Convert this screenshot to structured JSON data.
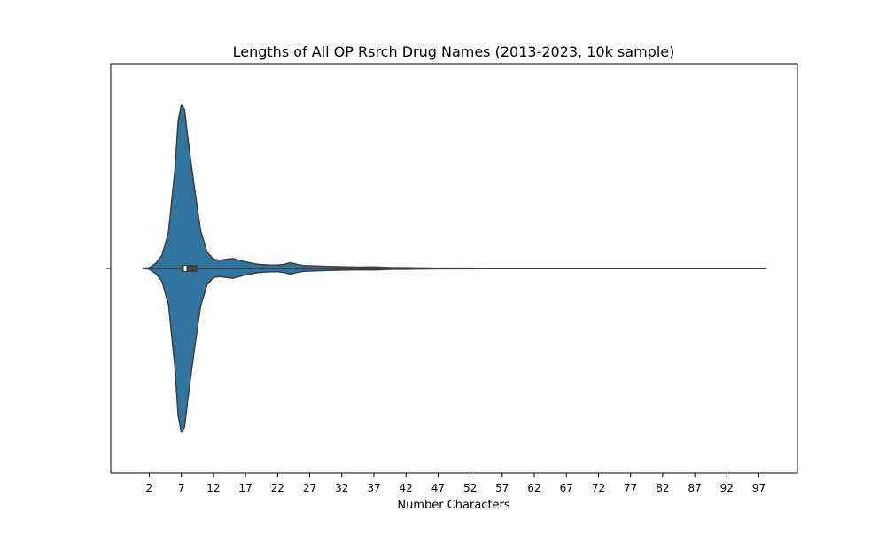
{
  "chart_data": {
    "type": "violin",
    "title": "Lengths of All OP Rsrch Drug Names (2013-2023, 10k sample)",
    "xlabel": "Number Characters",
    "ylabel": "",
    "xlim": [
      -4,
      103
    ],
    "xticks": [
      2,
      7,
      12,
      17,
      22,
      27,
      32,
      37,
      42,
      47,
      52,
      57,
      62,
      67,
      72,
      77,
      82,
      87,
      92,
      97
    ],
    "xtick_labels": [
      "2",
      "7",
      "12",
      "17",
      "22",
      "27",
      "32",
      "37",
      "42",
      "47",
      "52",
      "57",
      "62",
      "67",
      "72",
      "77",
      "82",
      "87",
      "92",
      "97"
    ],
    "grid": false,
    "fill_color": "#3274a1",
    "edge_color": "#3d3d3d",
    "density": {
      "x": [
        1,
        2,
        3,
        4,
        5,
        6,
        6.5,
        7,
        7.5,
        8,
        9,
        10,
        11,
        12,
        13,
        14,
        15,
        16,
        17,
        18,
        19,
        20,
        21,
        22,
        23,
        24,
        25,
        26,
        28,
        30,
        32,
        35,
        37,
        40,
        42,
        44,
        47,
        55,
        70,
        85,
        98
      ],
      "density": [
        0.0,
        0.005,
        0.03,
        0.08,
        0.22,
        0.6,
        0.9,
        1.0,
        0.97,
        0.8,
        0.5,
        0.23,
        0.1,
        0.055,
        0.05,
        0.055,
        0.06,
        0.05,
        0.04,
        0.032,
        0.025,
        0.022,
        0.02,
        0.02,
        0.025,
        0.035,
        0.025,
        0.018,
        0.015,
        0.012,
        0.01,
        0.008,
        0.009,
        0.005,
        0.005,
        0.003,
        0.002,
        0.001,
        0.0008,
        0.0008,
        0.0008
      ]
    },
    "box": {
      "q1": 7,
      "median": 7.6,
      "q3": 9.5,
      "whisker_low": 4,
      "whisker_high": 12,
      "min": 1,
      "max": 98
    }
  }
}
